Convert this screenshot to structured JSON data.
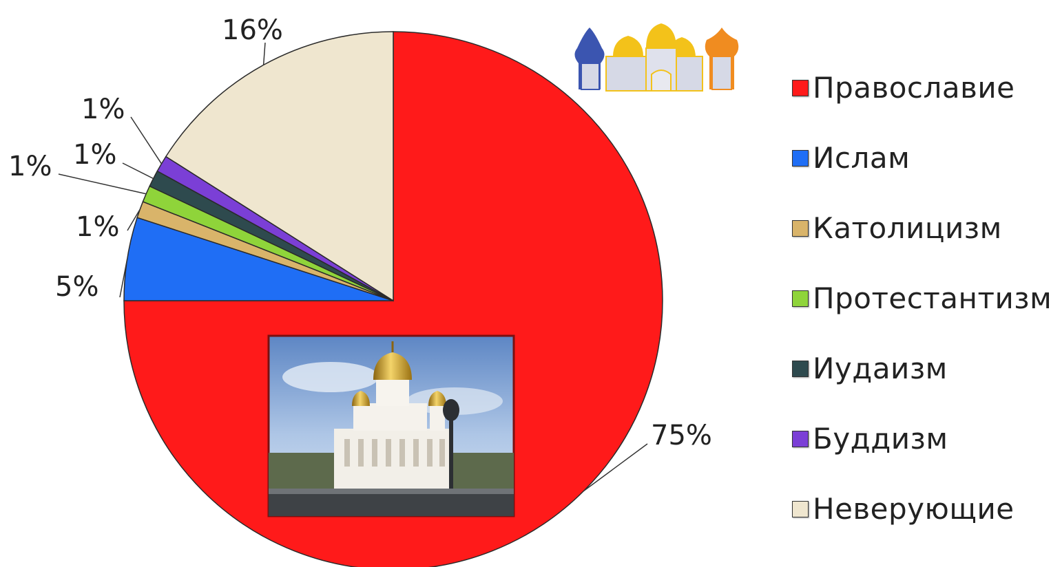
{
  "chart_data": {
    "type": "pie",
    "title": "",
    "categories": [
      "Православие",
      "Ислам",
      "Католицизм",
      "Протестантизм",
      "Иудаизм",
      "Буддизм",
      "Неверующие"
    ],
    "values": [
      75,
      5,
      1,
      1,
      1,
      1,
      16
    ],
    "data_labels": [
      "75%",
      "5%",
      "1%",
      "1%",
      "1%",
      "1%",
      "16%"
    ],
    "colors": [
      "#ff1a1a",
      "#1f6ef5",
      "#d9b46a",
      "#8fd43a",
      "#2e4a4e",
      "#7b3fd6",
      "#efe6cf"
    ],
    "start_angle_deg": 90,
    "direction": "clockwise",
    "legend_position": "right"
  },
  "images": {
    "photo": "cathedral-photo",
    "decoration": "kremlin-domes-icon"
  }
}
